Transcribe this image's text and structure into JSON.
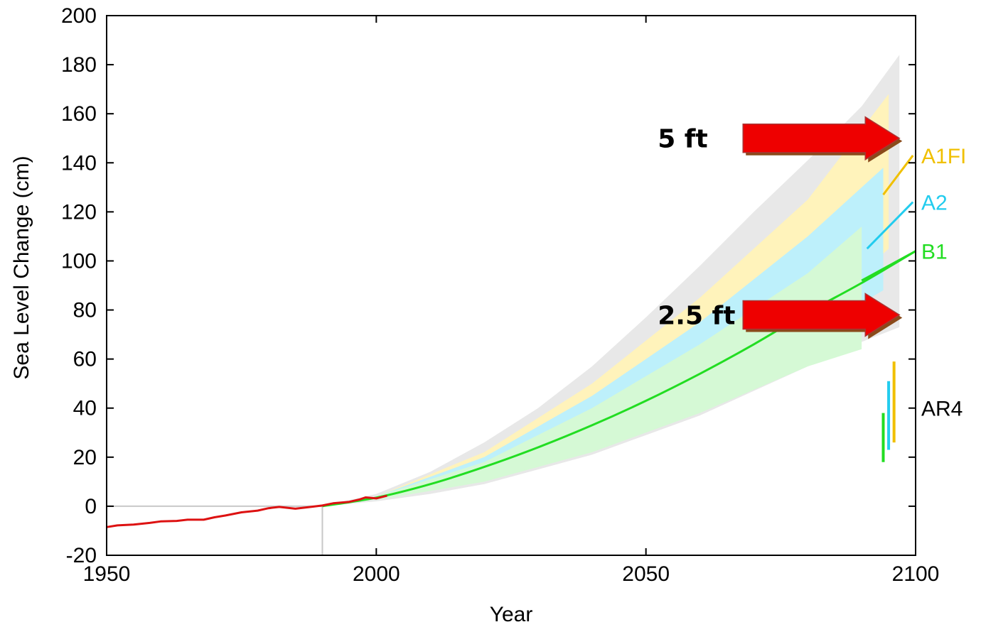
{
  "chart_data": {
    "type": "line",
    "xlabel": "Year",
    "ylabel": "Sea Level Change (cm)",
    "xlim": [
      1950,
      2100
    ],
    "ylim": [
      -20,
      200
    ],
    "xticks": [
      1950,
      2000,
      2050,
      2100
    ],
    "yticks": [
      -20,
      0,
      20,
      40,
      60,
      80,
      100,
      120,
      140,
      160,
      180,
      200
    ],
    "observed": {
      "color": "#dd1111",
      "x": [
        1950,
        1952,
        1955,
        1958,
        1960,
        1963,
        1965,
        1968,
        1970,
        1972,
        1975,
        1978,
        1980,
        1982,
        1985,
        1987,
        1990,
        1992,
        1995,
        1997,
        1998,
        2000,
        2002
      ],
      "y": [
        -8.5,
        -7.8,
        -7.5,
        -6.8,
        -6.2,
        -6.0,
        -5.5,
        -5.5,
        -4.5,
        -3.8,
        -2.5,
        -1.8,
        -0.8,
        -0.3,
        -1.0,
        -0.5,
        0.3,
        1.2,
        1.8,
        2.8,
        3.6,
        3.2,
        4.3
      ]
    },
    "projection": {
      "color": "#22dd22",
      "x": [
        1990,
        2000,
        2010,
        2020,
        2030,
        2040,
        2050,
        2060,
        2070,
        2080,
        2090,
        2100
      ],
      "y": [
        0,
        3.5,
        9,
        16,
        24,
        33,
        43,
        54,
        66,
        79,
        91,
        104
      ]
    },
    "bands": [
      {
        "name": "outer",
        "color": "#e8e8e8",
        "x": [
          1990,
          2000,
          2010,
          2020,
          2030,
          2040,
          2050,
          2060,
          2070,
          2080,
          2090,
          2097
        ],
        "upper": [
          0,
          5,
          14,
          26,
          40,
          57,
          77,
          98,
          120,
          141,
          163,
          184
        ],
        "lower": [
          0,
          2,
          5,
          9,
          15,
          21,
          29,
          37,
          47,
          57,
          67,
          73
        ]
      },
      {
        "name": "A1FI",
        "color": "#fff3bb",
        "x": [
          2000,
          2020,
          2040,
          2060,
          2080,
          2095
        ],
        "upper": [
          4,
          22,
          50,
          85,
          125,
          168
        ],
        "lower": [
          3,
          14,
          30,
          50,
          75,
          105
        ]
      },
      {
        "name": "A2",
        "color": "#bdf0fb",
        "x": [
          2000,
          2020,
          2040,
          2060,
          2080,
          2094
        ],
        "upper": [
          4,
          20,
          45,
          75,
          110,
          138
        ],
        "lower": [
          3,
          13,
          28,
          47,
          70,
          88
        ]
      },
      {
        "name": "B1",
        "color": "#d5f9d5",
        "x": [
          2000,
          2020,
          2040,
          2060,
          2080,
          2090
        ],
        "upper": [
          4,
          18,
          40,
          66,
          95,
          114
        ],
        "lower": [
          2.5,
          10,
          22,
          38,
          57,
          64
        ]
      }
    ],
    "scenario_lines": [
      {
        "name": "A1FI",
        "color": "#f0c000",
        "x": [
          2094,
          2099.5
        ],
        "y": [
          127,
          143
        ]
      },
      {
        "name": "A2",
        "color": "#22ccee",
        "x": [
          2091,
          2099.5
        ],
        "y": [
          105,
          124
        ]
      },
      {
        "name": "B1",
        "color": "#22dd22",
        "x": [
          2090,
          2100
        ],
        "y": [
          92,
          104
        ]
      }
    ],
    "ar4_bars": [
      {
        "color": "#22dd22",
        "x": 2094,
        "low": 18,
        "high": 38
      },
      {
        "color": "#22ccee",
        "x": 2095,
        "low": 23,
        "high": 51
      },
      {
        "color": "#f0c000",
        "x": 2096,
        "low": 26,
        "high": 59
      }
    ],
    "reference_lines": {
      "zero_y": 0,
      "vertical_x": 1990,
      "color": "#c8c8c8"
    },
    "arrows": [
      {
        "label": "5 ft",
        "y": 150,
        "x_start": 2068,
        "x_end": 2097
      },
      {
        "label": "2.5 ft",
        "y": 78,
        "x_start": 2068,
        "x_end": 2097
      }
    ],
    "arrow_color": "#ee0000",
    "arrow_shadow": "#8a4a1a",
    "labels": [
      {
        "text": "A1FI",
        "color": "#f0c000",
        "y": 143
      },
      {
        "text": "A2",
        "color": "#22ccee",
        "y": 124
      },
      {
        "text": "B1",
        "color": "#22dd22",
        "y": 104
      },
      {
        "text": "AR4",
        "color": "#000000",
        "y": 40
      }
    ]
  }
}
